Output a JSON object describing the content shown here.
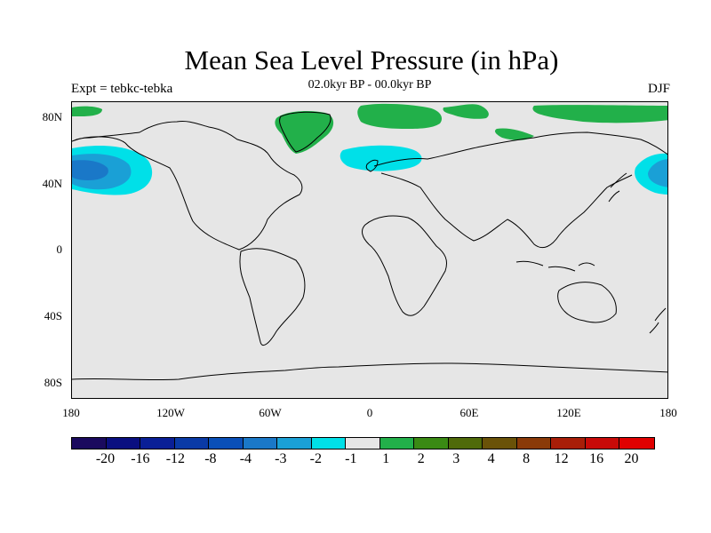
{
  "header": {
    "title": "Mean Sea Level Pressure (in hPa)",
    "subtitle": "02.0kyr BP - 00.0kyr BP",
    "experiment": "Expt = tebkc-tebka",
    "season": "DJF"
  },
  "axes": {
    "lat_labels": [
      "80N",
      "40N",
      "0",
      "40S",
      "80S"
    ],
    "lon_labels": [
      "180",
      "120W",
      "60W",
      "0",
      "60E",
      "120E",
      "180"
    ]
  },
  "colorbar": {
    "labels": [
      "-20",
      "-16",
      "-12",
      "-8",
      "-4",
      "-3",
      "-2",
      "-1",
      "1",
      "2",
      "3",
      "4",
      "8",
      "12",
      "16",
      "20"
    ],
    "colors": [
      "#1a0a5e",
      "#0a0f80",
      "#0a1f96",
      "#0a3aa6",
      "#0a4fb8",
      "#1a78c8",
      "#1aa0d6",
      "#00e0e8",
      "#e6e6e6",
      "#22b04a",
      "#3a8a14",
      "#4f6a0a",
      "#6a5208",
      "#8a3a08",
      "#a81e08",
      "#c80a08",
      "#e00000"
    ]
  },
  "map": {
    "background_color": "#e6e6e6",
    "coastline_color": "#000000"
  }
}
